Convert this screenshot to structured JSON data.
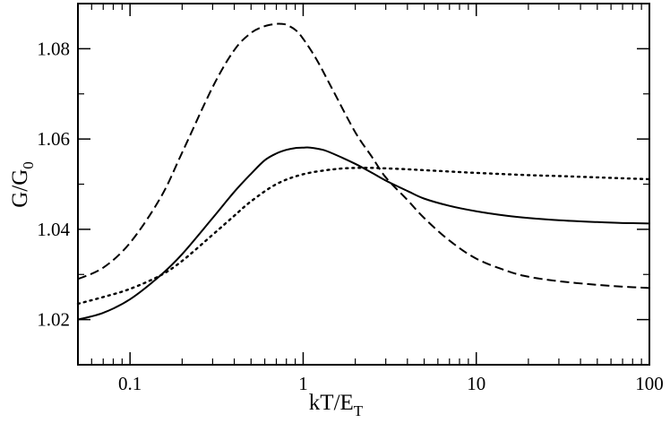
{
  "chart_data": {
    "type": "line",
    "xscale": "log",
    "xlabel": {
      "main": "kT/E",
      "sub": "T"
    },
    "ylabel": {
      "main": "G/G",
      "sub": "0"
    },
    "xlim": [
      0.05,
      100
    ],
    "ylim": [
      1.01,
      1.09
    ],
    "grid": false,
    "legend": "none",
    "xticks": [
      {
        "value": 0.1,
        "label": "0.1"
      },
      {
        "value": 1,
        "label": "1"
      },
      {
        "value": 10,
        "label": "10"
      },
      {
        "value": 100,
        "label": "100"
      }
    ],
    "yticks": [
      {
        "value": 1.02,
        "label": "1.02"
      },
      {
        "value": 1.04,
        "label": "1.04"
      },
      {
        "value": 1.06,
        "label": "1.06"
      },
      {
        "value": 1.08,
        "label": "1.08"
      }
    ],
    "series": [
      {
        "style": "solid",
        "color": "#000000",
        "x": [
          0.05,
          0.07,
          0.1,
          0.15,
          0.2,
          0.3,
          0.4,
          0.5,
          0.6,
          0.7,
          0.8,
          0.9,
          1.0,
          1.1,
          1.3,
          1.5,
          2.0,
          2.5,
          3.0,
          4.0,
          5.0,
          7.0,
          10,
          15,
          20,
          30,
          50,
          70,
          100
        ],
        "y": [
          1.02,
          1.0215,
          1.0245,
          1.0298,
          1.0345,
          1.0425,
          1.0483,
          1.0523,
          1.0553,
          1.0568,
          1.0576,
          1.058,
          1.0581,
          1.0581,
          1.0576,
          1.0567,
          1.0545,
          1.0525,
          1.0508,
          1.0485,
          1.0468,
          1.0452,
          1.044,
          1.043,
          1.0425,
          1.042,
          1.0416,
          1.0414,
          1.0413
        ]
      },
      {
        "style": "dashed",
        "color": "#000000",
        "x": [
          0.05,
          0.07,
          0.1,
          0.15,
          0.2,
          0.3,
          0.4,
          0.5,
          0.6,
          0.7,
          0.75,
          0.8,
          0.9,
          1.0,
          1.2,
          1.5,
          2.0,
          2.5,
          3.0,
          4.0,
          5.0,
          7.0,
          10,
          15,
          20,
          30,
          50,
          70,
          100
        ],
        "y": [
          1.029,
          1.0315,
          1.037,
          1.047,
          1.057,
          1.0715,
          1.0797,
          1.0835,
          1.085,
          1.0855,
          1.0855,
          1.0853,
          1.0842,
          1.0822,
          1.0775,
          1.0705,
          1.0615,
          1.056,
          1.0515,
          1.0465,
          1.0425,
          1.0375,
          1.0335,
          1.0308,
          1.0295,
          1.0285,
          1.0277,
          1.0273,
          1.027
        ]
      },
      {
        "style": "dotted",
        "color": "#000000",
        "x": [
          0.05,
          0.07,
          0.1,
          0.15,
          0.2,
          0.3,
          0.4,
          0.5,
          0.7,
          1.0,
          1.5,
          2.0,
          2.5,
          3.0,
          4.0,
          5.0,
          7.0,
          10,
          20,
          30,
          50,
          70,
          100
        ],
        "y": [
          1.0235,
          1.025,
          1.0268,
          1.0298,
          1.033,
          1.0388,
          1.043,
          1.0462,
          1.05,
          1.0522,
          1.0533,
          1.0536,
          1.0536,
          1.0535,
          1.0533,
          1.0531,
          1.0528,
          1.0525,
          1.052,
          1.0518,
          1.0515,
          1.0513,
          1.0511
        ]
      }
    ]
  }
}
